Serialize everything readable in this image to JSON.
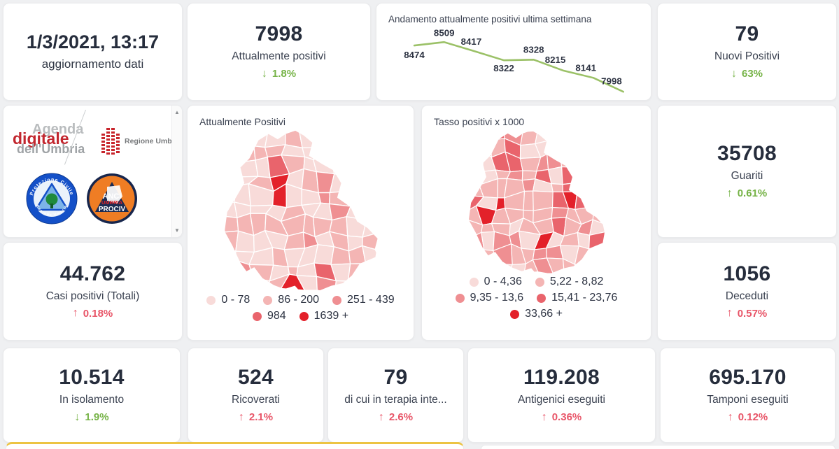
{
  "page": {
    "background": "#eff0f2",
    "accent_green": "#76b347",
    "accent_red": "#e85568",
    "number_color": "#262d3c"
  },
  "update_card": {
    "value": "1/3/2021, 13:17",
    "label": "aggiornamento dati"
  },
  "stats": {
    "attualmente_positivi": {
      "value": "7998",
      "label": "Attualmente positivi",
      "arrow": "↓",
      "delta": "1.8%",
      "tone": "green"
    },
    "nuovi_positivi": {
      "value": "79",
      "label": "Nuovi Positivi",
      "arrow": "↓",
      "delta": "63%",
      "tone": "green"
    },
    "guariti": {
      "value": "35708",
      "label": "Guariti",
      "arrow": "↑",
      "delta": "0.61%",
      "tone": "green"
    },
    "casi_totali": {
      "value": "44.762",
      "label": "Casi positivi (Totali)",
      "arrow": "↑",
      "delta": "0.18%",
      "tone": "red"
    },
    "deceduti": {
      "value": "1056",
      "label": "Deceduti",
      "arrow": "↑",
      "delta": "0.57%",
      "tone": "red"
    },
    "in_isolamento": {
      "value": "10.514",
      "label": "In isolamento",
      "arrow": "↓",
      "delta": "1.9%",
      "tone": "green"
    },
    "ricoverati": {
      "value": "524",
      "label": "Ricoverati",
      "arrow": "↑",
      "delta": "2.1%",
      "tone": "red"
    },
    "terapia_intensiva": {
      "value": "79",
      "label": "di cui in terapia inte...",
      "arrow": "↑",
      "delta": "2.6%",
      "tone": "red"
    },
    "antigenici": {
      "value": "119.208",
      "label": "Antigenici eseguiti",
      "arrow": "↑",
      "delta": "0.36%",
      "tone": "red"
    },
    "tamponi": {
      "value": "695.170",
      "label": "Tamponi eseguiti",
      "arrow": "↑",
      "delta": "0.12%",
      "tone": "red"
    }
  },
  "chart_data": {
    "type": "line",
    "title": "Andamento attualmente positivi ultima settimana",
    "series": [
      {
        "name": "attualmente positivi",
        "values": [
          8474,
          8509,
          8417,
          8322,
          8328,
          8215,
          8141,
          7998
        ]
      }
    ],
    "data_labels": [
      "8474",
      "8509",
      "8417",
      "8322",
      "8328",
      "8215",
      "8141",
      "7998"
    ],
    "line_color": "#9bc167",
    "label_color": "#2d3342",
    "ylim": [
      7998,
      8509
    ],
    "grid": false,
    "legend_position": "none"
  },
  "maps": [
    {
      "title": "Attualmente Positivi",
      "type": "choropleth",
      "legend_rows": [
        [
          {
            "label": "0 - 78",
            "color": "#f8dbd9"
          },
          {
            "label": "86 - 200",
            "color": "#f4b5b4"
          },
          {
            "label": "251 - 439",
            "color": "#ef8f92"
          }
        ],
        [
          {
            "label": "984",
            "color": "#e9646c"
          },
          {
            "label": "1639 +",
            "color": "#e3212a"
          }
        ]
      ]
    },
    {
      "title": "Tasso positivi x 1000",
      "type": "choropleth",
      "legend_rows": [
        [
          {
            "label": "0 - 4,36",
            "color": "#f8dbd9"
          },
          {
            "label": "5,22 - 8,82",
            "color": "#f4b5b4"
          }
        ],
        [
          {
            "label": "9,35 - 13,6",
            "color": "#ef8f92"
          },
          {
            "label": "15,41 - 23,76",
            "color": "#e9646c"
          }
        ],
        [
          {
            "label": "33,66 +",
            "color": "#e3212a"
          }
        ]
      ]
    }
  ],
  "logos": {
    "agenda_line1": "Agenda",
    "agenda_line2": "digitale",
    "agenda_line3": "dell'Umbria",
    "regione_label": "Regione Umbria",
    "prociv_top": "Protezione Civile",
    "prociv_bottom": "Regione Umbria",
    "anci_line1": "ANCI",
    "anci_line2": "UMBRIA",
    "anci_line3": "PROCIV"
  },
  "scrollbar": {
    "up_glyph": "▲",
    "down_glyph": "▼"
  }
}
